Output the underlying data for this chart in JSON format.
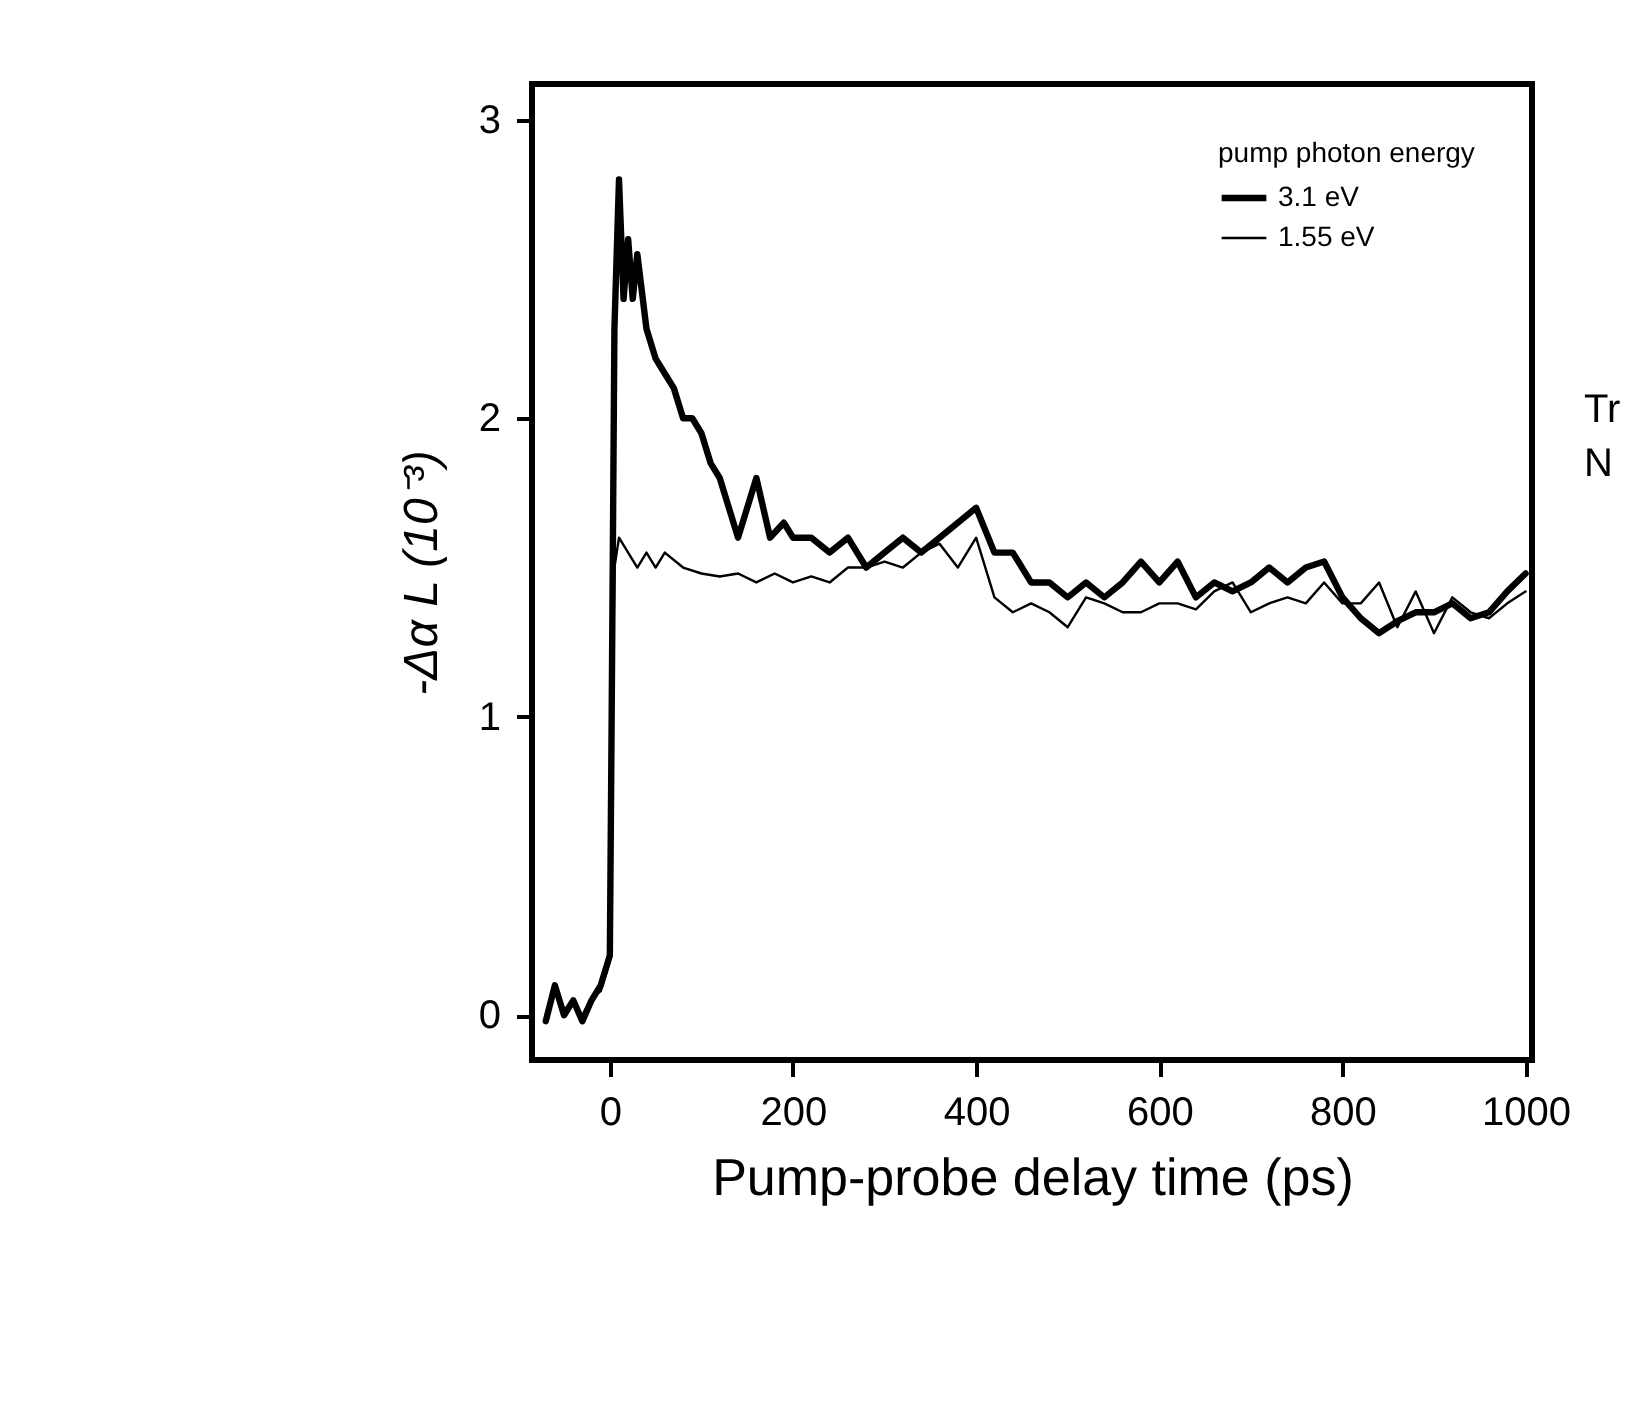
{
  "chart_data": {
    "type": "line",
    "xlabel": "Pump-probe delay time (ps)",
    "ylabel": "-Δα L  (10⁻³)",
    "legend_title": "pump photon energy",
    "legend": "top right",
    "xlim": [
      -85,
      1007
    ],
    "ylim": [
      -0.15,
      3.12
    ],
    "xticks": [
      0,
      200,
      400,
      600,
      800,
      1000
    ],
    "yticks": [
      0,
      1,
      2,
      3
    ],
    "grid": false,
    "line_style": "solid",
    "annotations": [
      "Tr",
      "N"
    ],
    "series": [
      {
        "name": "3.1 eV",
        "color": "#000000",
        "x": [
          -70,
          -60,
          -50,
          -40,
          -30,
          -20,
          -10,
          0,
          2,
          5,
          10,
          15,
          20,
          25,
          30,
          40,
          50,
          60,
          70,
          80,
          90,
          100,
          110,
          120,
          130,
          140,
          160,
          175,
          190,
          200,
          220,
          240,
          260,
          280,
          300,
          320,
          340,
          360,
          380,
          400,
          420,
          440,
          460,
          480,
          500,
          520,
          540,
          560,
          580,
          600,
          620,
          640,
          660,
          680,
          700,
          720,
          740,
          760,
          780,
          800,
          820,
          840,
          860,
          880,
          900,
          920,
          940,
          960,
          980,
          1000
        ],
        "values": [
          -0.02,
          0.1,
          0.0,
          0.05,
          -0.02,
          0.05,
          0.1,
          0.2,
          1.0,
          2.3,
          2.8,
          2.4,
          2.6,
          2.4,
          2.55,
          2.3,
          2.2,
          2.15,
          2.1,
          2.0,
          2.0,
          1.95,
          1.85,
          1.8,
          1.7,
          1.6,
          1.8,
          1.6,
          1.65,
          1.6,
          1.6,
          1.55,
          1.6,
          1.5,
          1.55,
          1.6,
          1.55,
          1.6,
          1.65,
          1.7,
          1.55,
          1.55,
          1.45,
          1.45,
          1.4,
          1.45,
          1.4,
          1.45,
          1.52,
          1.45,
          1.52,
          1.4,
          1.45,
          1.42,
          1.45,
          1.5,
          1.45,
          1.5,
          1.52,
          1.4,
          1.33,
          1.28,
          1.32,
          1.35,
          1.35,
          1.38,
          1.33,
          1.35,
          1.42,
          1.48
        ]
      },
      {
        "name": "1.55 eV",
        "color": "#000000",
        "x": [
          -70,
          -60,
          -50,
          -40,
          -30,
          -20,
          -10,
          0,
          2,
          5,
          10,
          20,
          30,
          40,
          50,
          60,
          80,
          100,
          120,
          140,
          160,
          180,
          200,
          220,
          240,
          260,
          280,
          300,
          320,
          340,
          360,
          380,
          400,
          420,
          440,
          460,
          480,
          500,
          520,
          540,
          560,
          580,
          600,
          620,
          640,
          660,
          680,
          700,
          720,
          740,
          760,
          780,
          800,
          820,
          840,
          860,
          880,
          900,
          920,
          940,
          960,
          980,
          1000
        ],
        "values": [
          0.0,
          0.08,
          0.02,
          0.04,
          0.0,
          0.06,
          0.08,
          0.18,
          0.9,
          1.5,
          1.6,
          1.55,
          1.5,
          1.55,
          1.5,
          1.55,
          1.5,
          1.48,
          1.47,
          1.48,
          1.45,
          1.48,
          1.45,
          1.47,
          1.45,
          1.5,
          1.5,
          1.52,
          1.5,
          1.55,
          1.58,
          1.5,
          1.6,
          1.4,
          1.35,
          1.38,
          1.35,
          1.3,
          1.4,
          1.38,
          1.35,
          1.35,
          1.38,
          1.38,
          1.36,
          1.42,
          1.45,
          1.35,
          1.38,
          1.4,
          1.38,
          1.45,
          1.38,
          1.38,
          1.45,
          1.3,
          1.42,
          1.28,
          1.4,
          1.35,
          1.33,
          1.38,
          1.42
        ]
      }
    ]
  }
}
